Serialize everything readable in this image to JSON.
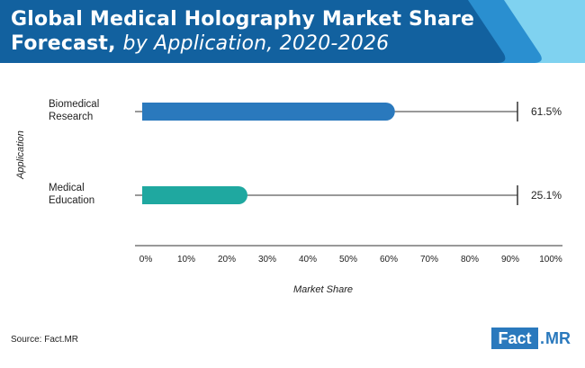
{
  "header": {
    "title_main": "Global Medical Holography Market Share",
    "title_line2_bold": "Forecast,",
    "title_line2_italic": "by Application, 2020-2026"
  },
  "colors": {
    "header_dark": "#12619f",
    "header_mid": "#2a8fd0",
    "header_light": "#7fd2f0",
    "bar_biomedical": "#2a79bd",
    "bar_medical": "#1fa8a0",
    "axis": "#333333"
  },
  "chart_data": {
    "type": "bar",
    "orientation": "horizontal",
    "categories": [
      "Biomedical Research",
      "Medical Education"
    ],
    "category_lines": [
      [
        "Biomedical",
        "Research"
      ],
      [
        "Medical",
        "Education"
      ]
    ],
    "values": [
      61.5,
      25.1
    ],
    "value_labels": [
      "61.5%",
      "25.1%"
    ],
    "xlabel": "Market Share",
    "ylabel": "Application",
    "xlim": [
      0,
      100
    ],
    "x_ticks": [
      0,
      10,
      20,
      30,
      40,
      50,
      60,
      70,
      80,
      90,
      100
    ],
    "x_tick_labels": [
      "0%",
      "10%",
      "20%",
      "30%",
      "40%",
      "50%",
      "60%",
      "70%",
      "80%",
      "90%",
      "100%"
    ],
    "grid": false
  },
  "footer": {
    "source": "Source: Fact.MR",
    "logo_fact": "Fact",
    "logo_dot": ".",
    "logo_mr": "MR"
  }
}
